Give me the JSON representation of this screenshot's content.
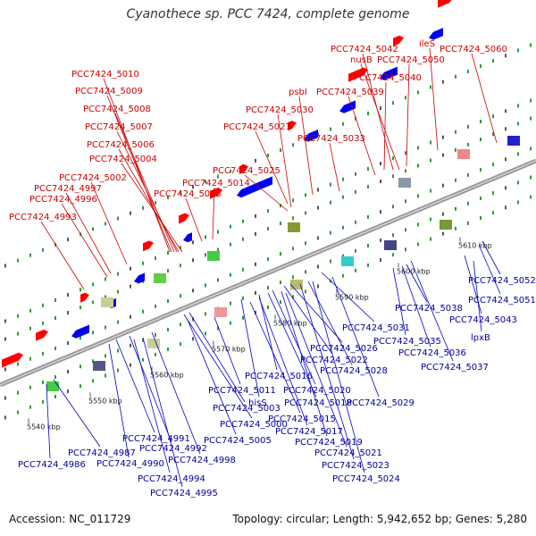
{
  "title": "Cyanothece sp. PCC 7424, complete genome",
  "footer": {
    "accession": "Accession: NC_011729",
    "topology": "Topology: circular; Length: 5,942,652 bp; Genes: 5,280"
  },
  "colors": {
    "forward_label": "#cc0000",
    "reverse_label": "#000099",
    "forward_gene": "#ff0000",
    "reverse_gene": "#0000ee",
    "axis": "#999999"
  },
  "scale_labels": [
    "5540 kbp",
    "5550 kbp",
    "5560 kbp",
    "5570 kbp",
    "5580 kbp",
    "5590 kbp",
    "5600 kbp",
    "5610 kbp"
  ],
  "top_labels": [
    "PCC7424_5042",
    "ileS",
    "PCC7424_5060",
    "nusB",
    "PCC7424_5050",
    "PCC7424_5040",
    "psbI",
    "PCC7424_5039",
    "PCC7424_5010",
    "PCC7424_5009",
    "PCC7424_5008",
    "PCC7424_5030",
    "PCC7424_5007",
    "PCC7424_5027",
    "PCC7424_5033",
    "PCC7424_5006",
    "PCC7424_5004",
    "PCC7424_5025",
    "PCC7424_5002",
    "PCC7424_5014",
    "PCC7424_4997",
    "PCC7424_5013",
    "PCC7424_4996",
    "PCC7424_4993"
  ],
  "bottom_labels": [
    "PCC7424_5052",
    "PCC7424_5051",
    "PCC7424_5038",
    "PCC7424_5043",
    "PCC7424_5031",
    "lpxB",
    "PCC7424_5035",
    "PCC7424_5026",
    "PCC7424_5036",
    "PCC7424_5022",
    "PCC7424_5037",
    "PCC7424_5028",
    "PCC7424_5016",
    "PCC7424_5011",
    "PCC7424_5020",
    "hisS",
    "PCC7424_5018",
    "PCC7424_5029",
    "PCC7424_5003",
    "PCC7424_5000",
    "PCC7424_5015",
    "PCC7424_5017",
    "PCC7424_5005",
    "PCC7424_4991",
    "PCC7424_5019",
    "PCC7424_4992",
    "PCC7424_4987",
    "PCC7424_4990",
    "PCC7424_5021",
    "PCC7424_4998",
    "PCC7424_4986",
    "PCC7424_5023",
    "PCC7424_4994",
    "PCC7424_5024",
    "PCC7424_4995"
  ]
}
